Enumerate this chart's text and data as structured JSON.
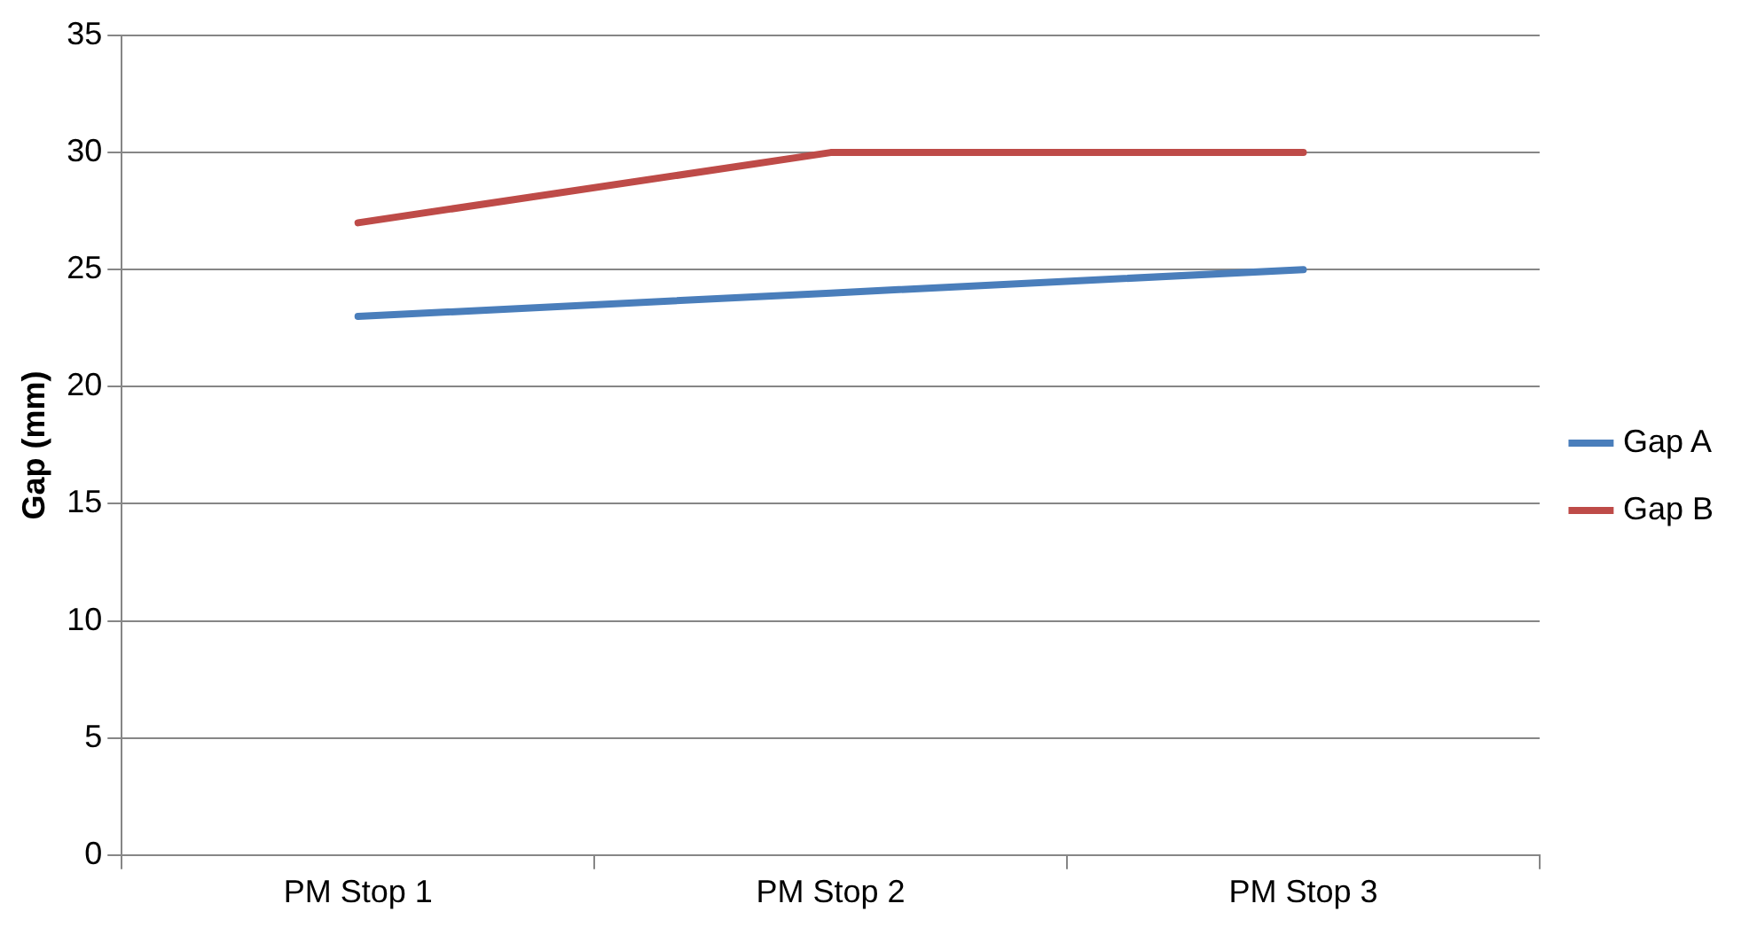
{
  "chart_data": {
    "type": "line",
    "ylabel": "Gap (mm)",
    "categories": [
      "PM Stop 1",
      "PM Stop 2",
      "PM Stop 3"
    ],
    "series": [
      {
        "name": "Gap A",
        "color": "#4a7ebb",
        "values": [
          23,
          24,
          25
        ]
      },
      {
        "name": "Gap B",
        "color": "#be4b48",
        "values": [
          27,
          30,
          30
        ]
      }
    ],
    "ylim": [
      0,
      35
    ],
    "yticks": [
      0,
      5,
      10,
      15,
      20,
      25,
      30,
      35
    ],
    "grid": "y",
    "legend": "right",
    "marker": "none",
    "line_style": "solid"
  }
}
